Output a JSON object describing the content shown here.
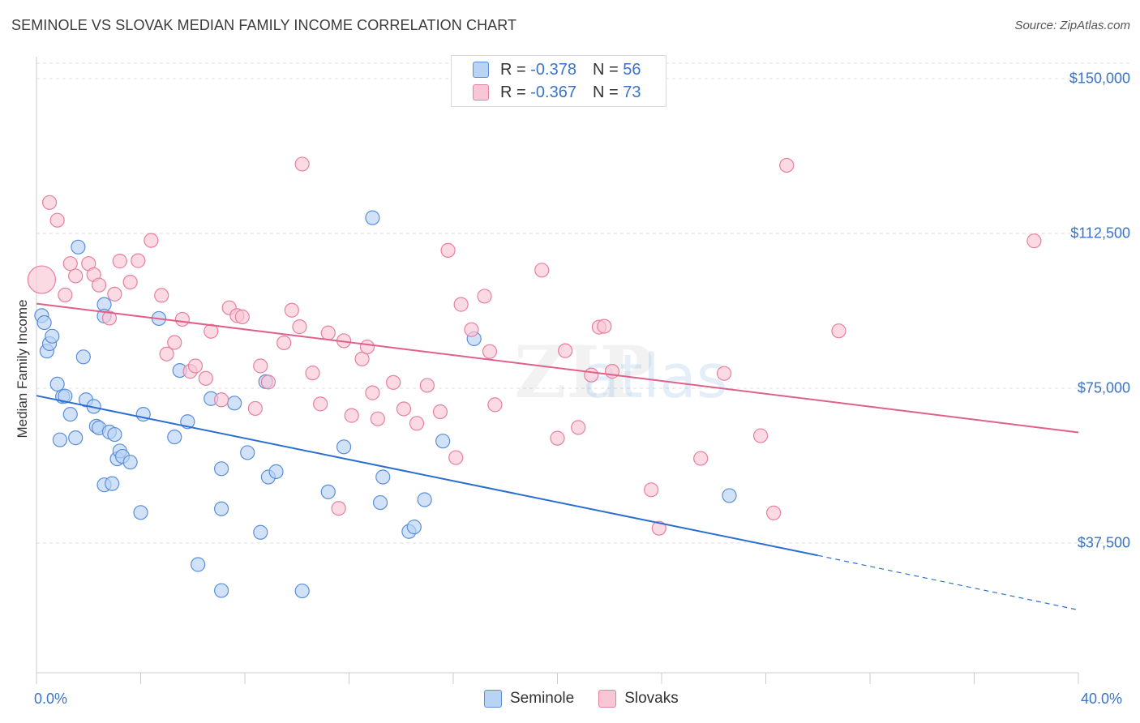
{
  "title": "SEMINOLE VS SLOVAK MEDIAN FAMILY INCOME CORRELATION CHART",
  "source": "Source: ZipAtlas.com",
  "legend": {
    "r_label": "R =",
    "n_label": "N =",
    "rows": [
      {
        "r": "-0.378",
        "n": "56"
      },
      {
        "r": "-0.367",
        "n": "73"
      }
    ]
  },
  "colors": {
    "seminole_fill": "#b8d3f4",
    "seminole_stroke": "#5a8fd8",
    "seminole_line": "#2a6fd0",
    "slovaks_fill": "#f9c6d5",
    "slovaks_stroke": "#e87fa0",
    "slovaks_line": "#e0608a",
    "tick_text": "#3a74c6",
    "grid": "#dddddd"
  },
  "watermark": "ZIPatlas",
  "chart_data": {
    "type": "scatter",
    "title": "SEMINOLE VS SLOVAK MEDIAN FAMILY INCOME CORRELATION CHART",
    "xlabel": "",
    "ylabel": "Median Family Income",
    "xlim": [
      0,
      40
    ],
    "ylim": [
      0,
      155000
    ],
    "x_tick_labels": [
      "0.0%",
      "40.0%"
    ],
    "y_ticks": [
      37500,
      75000,
      112500,
      150000
    ],
    "y_tick_labels": [
      "$37,500",
      "$75,000",
      "$112,500",
      "$150,000"
    ],
    "grid": true,
    "legend_position": "top-center",
    "series": [
      {
        "name": "Seminole",
        "r": -0.378,
        "n": 56,
        "trend": {
          "x0": 0.0,
          "y0": 73200,
          "x1": 30.0,
          "y1": 34500,
          "dashed_to_x": 40.0,
          "dashed_to_y": 21300
        },
        "points": [
          [
            0.2,
            92600
          ],
          [
            0.3,
            90900
          ],
          [
            0.4,
            84000
          ],
          [
            0.5,
            85800
          ],
          [
            0.6,
            87600
          ],
          [
            0.8,
            76000
          ],
          [
            0.9,
            62500
          ],
          [
            1.0,
            73000
          ],
          [
            1.1,
            73100
          ],
          [
            1.3,
            68700
          ],
          [
            1.5,
            63000
          ],
          [
            1.6,
            109200
          ],
          [
            1.8,
            82600
          ],
          [
            1.9,
            72200
          ],
          [
            2.2,
            70600
          ],
          [
            2.3,
            65800
          ],
          [
            2.4,
            65400
          ],
          [
            2.6,
            95300
          ],
          [
            2.6,
            92500
          ],
          [
            2.6,
            51600
          ],
          [
            2.8,
            64400
          ],
          [
            2.9,
            51900
          ],
          [
            3.0,
            63800
          ],
          [
            3.1,
            57900
          ],
          [
            3.2,
            59800
          ],
          [
            3.3,
            58500
          ],
          [
            3.6,
            57100
          ],
          [
            4.0,
            44900
          ],
          [
            4.1,
            68700
          ],
          [
            4.7,
            91900
          ],
          [
            5.3,
            63200
          ],
          [
            5.5,
            79300
          ],
          [
            5.8,
            66900
          ],
          [
            6.2,
            32300
          ],
          [
            6.7,
            72500
          ],
          [
            7.1,
            55500
          ],
          [
            7.1,
            45800
          ],
          [
            7.6,
            71400
          ],
          [
            8.1,
            59400
          ],
          [
            8.6,
            40100
          ],
          [
            8.8,
            76600
          ],
          [
            8.9,
            53500
          ],
          [
            9.2,
            54800
          ],
          [
            10.2,
            25900
          ],
          [
            11.2,
            49900
          ],
          [
            11.8,
            60800
          ],
          [
            12.9,
            116300
          ],
          [
            13.2,
            47300
          ],
          [
            13.3,
            53500
          ],
          [
            14.3,
            40300
          ],
          [
            14.5,
            41400
          ],
          [
            14.9,
            48000
          ],
          [
            15.6,
            62200
          ],
          [
            16.8,
            87000
          ],
          [
            7.1,
            26000
          ],
          [
            26.6,
            49000
          ]
        ]
      },
      {
        "name": "Slovaks",
        "r": -0.367,
        "n": 73,
        "trend": {
          "x0": 0.0,
          "y0": 95500,
          "x1": 40.0,
          "y1": 64300
        },
        "points": [
          [
            0.2,
            101300
          ],
          [
            0.5,
            120000
          ],
          [
            0.8,
            115700
          ],
          [
            1.1,
            97600
          ],
          [
            1.3,
            105200
          ],
          [
            1.5,
            102200
          ],
          [
            2.0,
            105200
          ],
          [
            2.2,
            102500
          ],
          [
            2.4,
            100000
          ],
          [
            2.8,
            92000
          ],
          [
            3.0,
            97800
          ],
          [
            3.2,
            105800
          ],
          [
            3.6,
            100700
          ],
          [
            3.9,
            105900
          ],
          [
            4.4,
            110800
          ],
          [
            4.8,
            97500
          ],
          [
            5.0,
            83300
          ],
          [
            5.3,
            86100
          ],
          [
            5.6,
            91700
          ],
          [
            5.9,
            79100
          ],
          [
            6.1,
            80400
          ],
          [
            6.5,
            77400
          ],
          [
            6.7,
            88800
          ],
          [
            7.1,
            72200
          ],
          [
            7.4,
            94500
          ],
          [
            7.7,
            92600
          ],
          [
            7.9,
            92300
          ],
          [
            8.4,
            70100
          ],
          [
            8.6,
            80400
          ],
          [
            8.9,
            76500
          ],
          [
            9.5,
            86000
          ],
          [
            9.8,
            93900
          ],
          [
            10.1,
            89900
          ],
          [
            10.2,
            129300
          ],
          [
            10.6,
            78700
          ],
          [
            10.9,
            71200
          ],
          [
            11.2,
            88400
          ],
          [
            11.6,
            45900
          ],
          [
            11.8,
            86500
          ],
          [
            12.1,
            68400
          ],
          [
            12.5,
            82100
          ],
          [
            12.7,
            85000
          ],
          [
            12.9,
            73900
          ],
          [
            13.1,
            67600
          ],
          [
            13.7,
            76400
          ],
          [
            14.1,
            70000
          ],
          [
            14.6,
            66500
          ],
          [
            15.0,
            75700
          ],
          [
            15.5,
            69300
          ],
          [
            15.8,
            108400
          ],
          [
            16.1,
            58200
          ],
          [
            16.3,
            95300
          ],
          [
            16.7,
            89200
          ],
          [
            17.2,
            97300
          ],
          [
            17.4,
            83900
          ],
          [
            17.6,
            71000
          ],
          [
            19.4,
            103600
          ],
          [
            20.0,
            62900
          ],
          [
            20.3,
            84100
          ],
          [
            20.8,
            65500
          ],
          [
            21.3,
            78200
          ],
          [
            21.6,
            89800
          ],
          [
            21.8,
            90000
          ],
          [
            22.1,
            79100
          ],
          [
            23.6,
            50400
          ],
          [
            23.9,
            41100
          ],
          [
            25.5,
            58000
          ],
          [
            26.4,
            78600
          ],
          [
            27.8,
            63500
          ],
          [
            28.3,
            44800
          ],
          [
            28.8,
            129000
          ],
          [
            30.8,
            88900
          ],
          [
            38.3,
            110700
          ]
        ]
      }
    ]
  }
}
